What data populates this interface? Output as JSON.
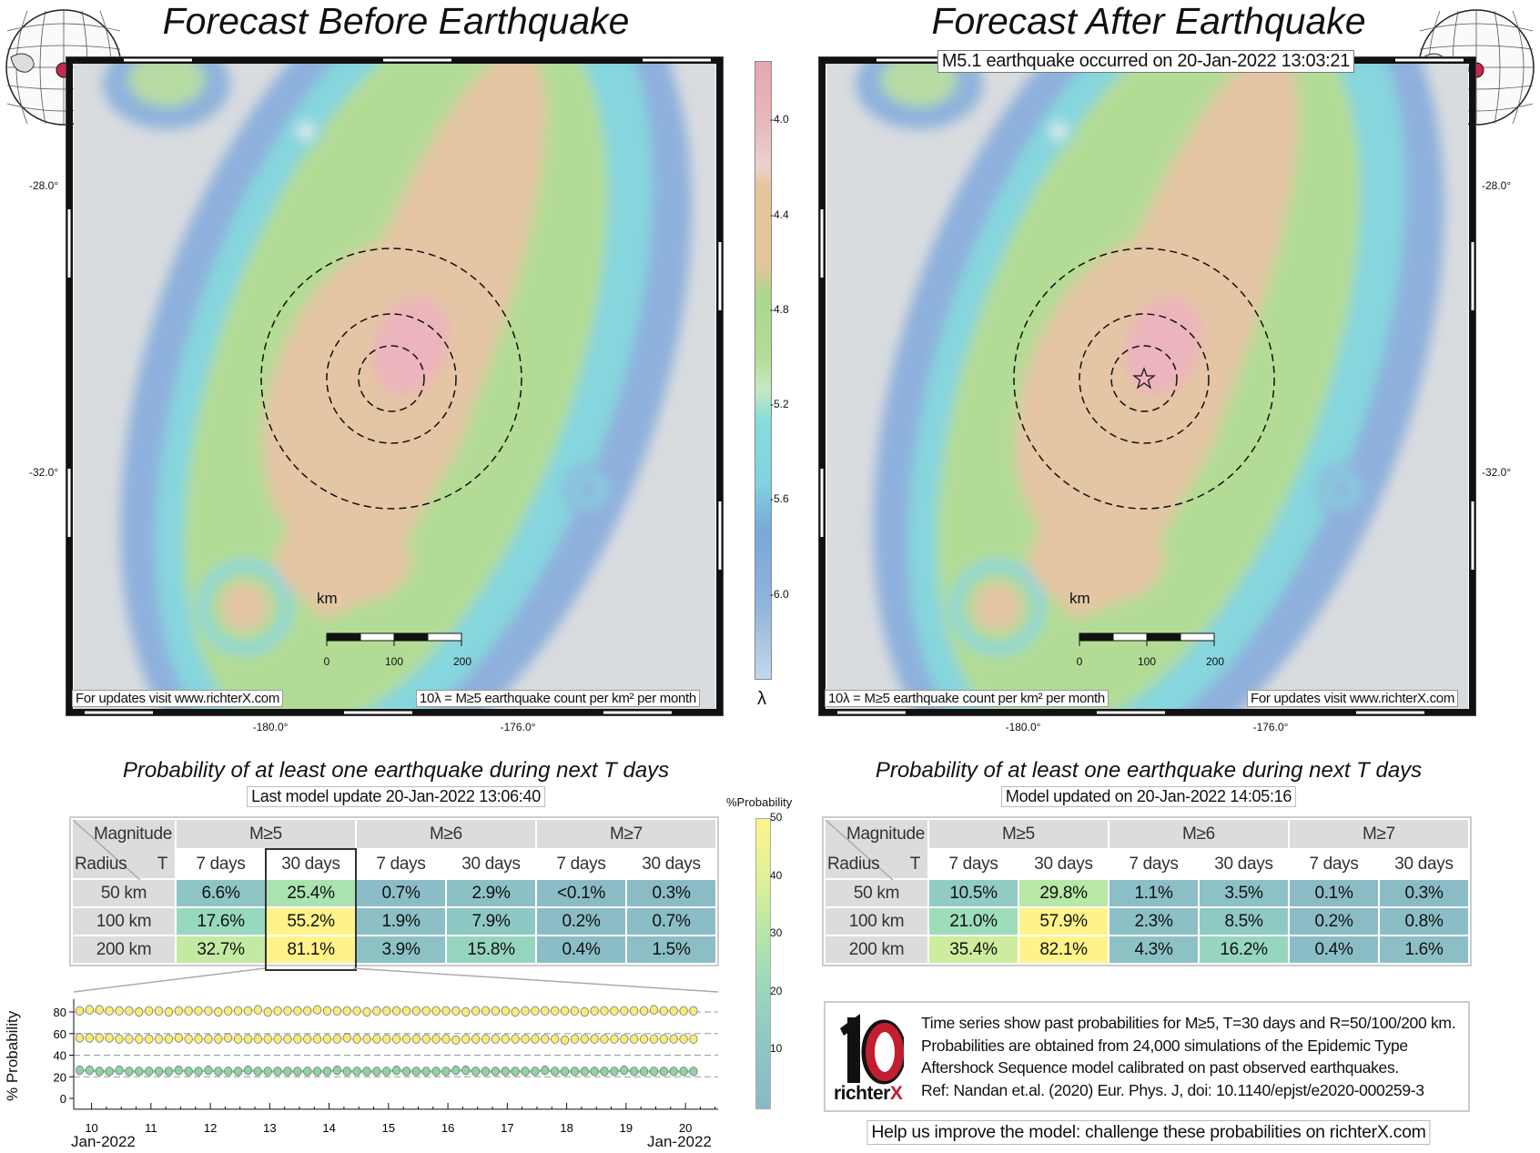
{
  "left_panel": {
    "title": "Forecast Before Earthquake",
    "lat_labels": [
      "-28.0°",
      "-32.0°"
    ],
    "lon_labels": [
      "-180.0°",
      "-176.0°"
    ],
    "scale": {
      "unit": "km",
      "ticks": [
        "0",
        "100",
        "200"
      ]
    },
    "footnote_url": "For updates visit www.richterX.com",
    "footnote_units": "10λ = M≥5 earthquake count per km² per month",
    "table_title": "Probability of at least one earthquake during next T days",
    "table_update": "Last model update 20-Jan-2022 13:06:40",
    "table": {
      "corner_magnitude": "Magnitude",
      "corner_radius": "Radius",
      "corner_t": "T",
      "magnitudes": [
        "M≥5",
        "M≥6",
        "M≥7"
      ],
      "periods": [
        "7 days",
        "30 days",
        "7 days",
        "30 days",
        "7 days",
        "30 days"
      ],
      "rows": [
        {
          "radius": "50 km",
          "values": [
            "6.6%",
            "25.4%",
            "0.7%",
            "2.9%",
            "<0.1%",
            "0.3%"
          ],
          "num": [
            6.6,
            25.4,
            0.7,
            2.9,
            0.05,
            0.3
          ]
        },
        {
          "radius": "100 km",
          "values": [
            "17.6%",
            "55.2%",
            "1.9%",
            "7.9%",
            "0.2%",
            "0.7%"
          ],
          "num": [
            17.6,
            55.2,
            1.9,
            7.9,
            0.2,
            0.7
          ]
        },
        {
          "radius": "200 km",
          "values": [
            "32.7%",
            "81.1%",
            "3.9%",
            "15.8%",
            "0.4%",
            "1.5%"
          ],
          "num": [
            32.7,
            81.1,
            3.9,
            15.8,
            0.4,
            1.5
          ]
        }
      ]
    }
  },
  "right_panel": {
    "title": "Forecast After Earthquake",
    "event_caption": "M5.1 earthquake occurred on 20-Jan-2022 13:03:21",
    "lat_labels": [
      "-28.0°",
      "-32.0°"
    ],
    "lon_labels": [
      "-180.0°",
      "-176.0°"
    ],
    "scale": {
      "unit": "km",
      "ticks": [
        "0",
        "100",
        "200"
      ]
    },
    "footnote_url": "For updates visit www.richterX.com",
    "footnote_units": "10λ = M≥5 earthquake count per km² per month",
    "table_title": "Probability of at least one earthquake during next T days",
    "table_update": "Model updated on 20-Jan-2022 14:05:16",
    "table": {
      "corner_magnitude": "Magnitude",
      "corner_radius": "Radius",
      "corner_t": "T",
      "magnitudes": [
        "M≥5",
        "M≥6",
        "M≥7"
      ],
      "periods": [
        "7 days",
        "30 days",
        "7 days",
        "30 days",
        "7 days",
        "30 days"
      ],
      "rows": [
        {
          "radius": "50 km",
          "values": [
            "10.5%",
            "29.8%",
            "1.1%",
            "3.5%",
            "0.1%",
            "0.3%"
          ],
          "num": [
            10.5,
            29.8,
            1.1,
            3.5,
            0.1,
            0.3
          ]
        },
        {
          "radius": "100 km",
          "values": [
            "21.0%",
            "57.9%",
            "2.3%",
            "8.5%",
            "0.2%",
            "0.8%"
          ],
          "num": [
            21.0,
            57.9,
            2.3,
            8.5,
            0.2,
            0.8
          ]
        },
        {
          "radius": "200 km",
          "values": [
            "35.4%",
            "82.1%",
            "4.3%",
            "16.2%",
            "0.4%",
            "1.6%"
          ],
          "num": [
            35.4,
            82.1,
            4.3,
            16.2,
            0.4,
            1.6
          ]
        }
      ]
    }
  },
  "rate_colorbar": {
    "label": "λ",
    "ticks": [
      "-4.0",
      "-4.4",
      "-4.8",
      "-5.2",
      "-5.6",
      "-6.0"
    ],
    "range": [
      -3.75,
      -6.35
    ]
  },
  "prob_colorbar": {
    "label": "%Probability",
    "ticks": [
      "50",
      "40",
      "30",
      "20",
      "10"
    ],
    "range": [
      0,
      50
    ]
  },
  "chart_data": {
    "type": "scatter",
    "title": "",
    "xlabel": "Jan-2022",
    "xlabel_right": "Jan-2022",
    "ylabel": "% Probability",
    "ylim": [
      -10,
      92
    ],
    "xlim": [
      9.7,
      20.55
    ],
    "x_ticks": [
      "10",
      "11",
      "12",
      "13",
      "14",
      "15",
      "16",
      "17",
      "18",
      "19",
      "20"
    ],
    "y_ticks": [
      "0",
      "20",
      "40",
      "60",
      "80"
    ],
    "grid_lines_y": [
      20,
      40,
      60,
      80
    ],
    "x_start_day": 9.8,
    "x_step_days": 0.1667,
    "series": [
      {
        "name": "R=200 km",
        "color": "#f6ec7e",
        "values": [
          81,
          82,
          82,
          81,
          81,
          81,
          80,
          81,
          81,
          80,
          81,
          81,
          81,
          81,
          80,
          81,
          81,
          81,
          82,
          80,
          81,
          81,
          81,
          81,
          82,
          81,
          81,
          81,
          81,
          80,
          81,
          81,
          81,
          81,
          81,
          81,
          81,
          81,
          81,
          80,
          81,
          81,
          81,
          81,
          80,
          81,
          81,
          81,
          81,
          81,
          81,
          80,
          81,
          81,
          81,
          81,
          81,
          81,
          82,
          81,
          81,
          81,
          81
        ]
      },
      {
        "name": "R=100 km",
        "color": "#f6ec7e",
        "values": [
          56,
          56,
          56,
          56,
          55,
          55,
          55,
          55,
          55,
          55,
          56,
          55,
          55,
          55,
          55,
          56,
          55,
          55,
          55,
          55,
          55,
          55,
          55,
          55,
          55,
          55,
          55,
          56,
          55,
          55,
          55,
          55,
          55,
          55,
          55,
          55,
          55,
          55,
          54,
          55,
          55,
          55,
          55,
          55,
          55,
          55,
          55,
          55,
          55,
          54,
          55,
          55,
          55,
          55,
          55,
          55,
          55,
          55,
          55,
          55,
          55,
          55,
          55
        ]
      },
      {
        "name": "R=50 km",
        "color": "#8fd3a6",
        "values": [
          26,
          26,
          25,
          25,
          26,
          25,
          25,
          25,
          25,
          25,
          26,
          25,
          25,
          26,
          25,
          25,
          25,
          26,
          25,
          25,
          25,
          25,
          25,
          25,
          25,
          25,
          26,
          25,
          25,
          25,
          25,
          25,
          26,
          25,
          25,
          25,
          25,
          25,
          26,
          26,
          25,
          25,
          25,
          25,
          25,
          25,
          25,
          26,
          25,
          25,
          25,
          25,
          25,
          25,
          25,
          26,
          25,
          25,
          25,
          25,
          25,
          25,
          25
        ]
      }
    ]
  },
  "info_box": {
    "logo_text": "richterX",
    "lines": [
      "Time series show past probabilities for M≥5, T=30 days and R=50/100/200 km.",
      "Probabilities are obtained from 24,000 simulations of the Epidemic Type",
      "Aftershock Sequence model calibrated on past observed earthquakes.",
      "Ref: Nandan et.al. (2020) Eur. Phys. J, doi: 10.1140/epjst/e2020-000259-3"
    ]
  },
  "help_text": "Help us improve the model: challenge these probabilities on richterX.com"
}
